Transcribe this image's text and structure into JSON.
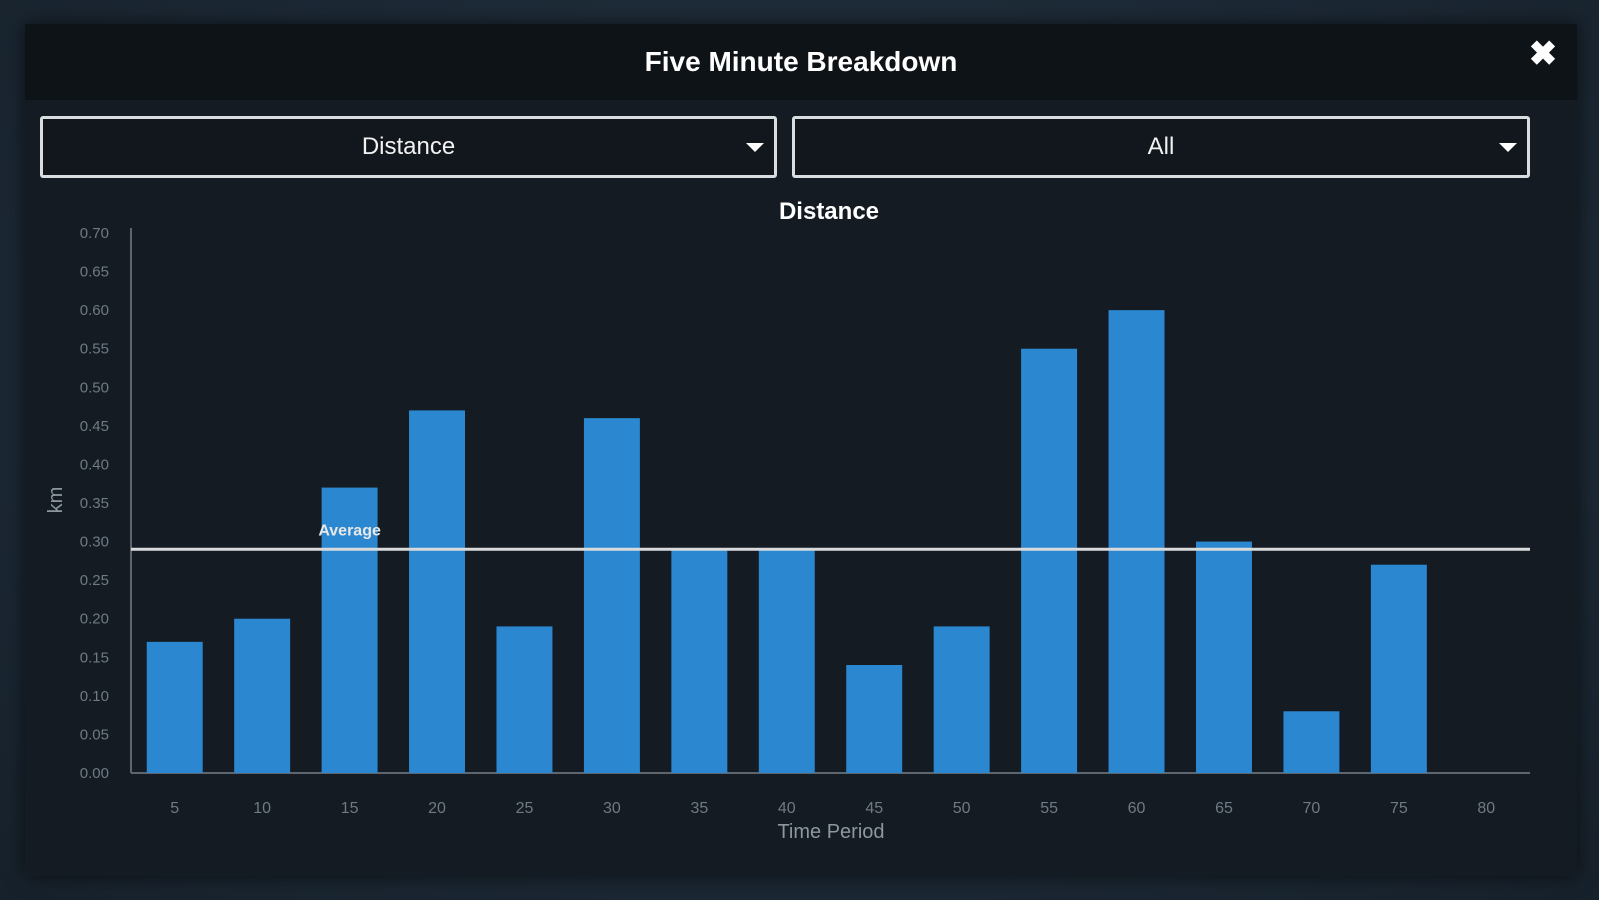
{
  "modal": {
    "title": "Five Minute Breakdown",
    "close_icon": "close-icon"
  },
  "filters": {
    "metric": {
      "value": "Distance"
    },
    "period": {
      "value": "All"
    }
  },
  "colors": {
    "bar": "#2b88d0",
    "average_line": "#d8dadc",
    "axis": "#5d666e"
  },
  "chart_data": {
    "type": "bar",
    "title": "Distance",
    "xlabel": "Time Period",
    "ylabel": "km",
    "ylim": [
      0,
      0.7
    ],
    "yticks": [
      "0.00",
      "0.05",
      "0.10",
      "0.15",
      "0.20",
      "0.25",
      "0.30",
      "0.35",
      "0.40",
      "0.45",
      "0.50",
      "0.55",
      "0.60",
      "0.65",
      "0.70"
    ],
    "categories": [
      "5",
      "10",
      "15",
      "20",
      "25",
      "30",
      "35",
      "40",
      "45",
      "50",
      "55",
      "60",
      "65",
      "70",
      "75",
      "80"
    ],
    "values": [
      0.17,
      0.2,
      0.37,
      0.47,
      0.19,
      0.46,
      0.29,
      0.29,
      0.14,
      0.19,
      0.55,
      0.6,
      0.3,
      0.08,
      0.27,
      null
    ],
    "average": {
      "label": "Average",
      "value": 0.29
    },
    "grid": false,
    "legend": "none"
  }
}
